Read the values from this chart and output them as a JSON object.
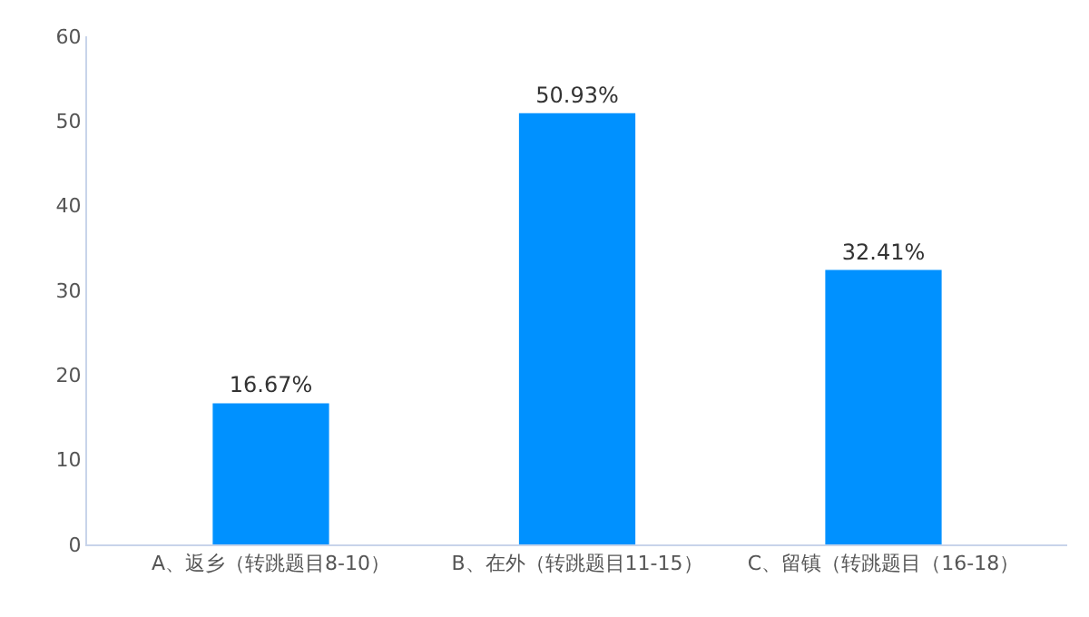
{
  "chart_data": {
    "type": "bar",
    "categories": [
      "A、返乡（转跳题目8-10）",
      "B、在外（转跳题目11-15）",
      "C、留镇（转跳题目（16-18）"
    ],
    "values": [
      16.67,
      50.93,
      32.41
    ],
    "value_labels": [
      "16.67%",
      "50.93%",
      "32.41%"
    ],
    "color": "#0091ff",
    "ylim": [
      0,
      60
    ],
    "yticks": [
      0,
      10,
      20,
      30,
      40,
      50,
      60
    ],
    "grid": false,
    "legend": false
  }
}
